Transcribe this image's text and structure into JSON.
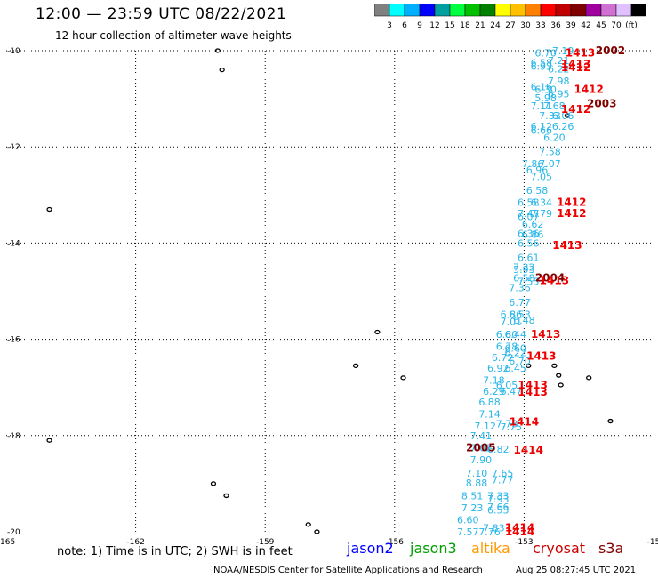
{
  "header": {
    "title": "12:00 — 23:59 UTC 08/22/2021",
    "subtitle": "12 hour collection of altimeter wave heights"
  },
  "color_scale": {
    "unit": "(ft)",
    "bins": [
      {
        "label": "",
        "color": "#808080"
      },
      {
        "label": "3",
        "color": "#00ffff"
      },
      {
        "label": "6",
        "color": "#00b0ff"
      },
      {
        "label": "9",
        "color": "#0000ff"
      },
      {
        "label": "12",
        "color": "#00a0a0"
      },
      {
        "label": "15",
        "color": "#00ff40"
      },
      {
        "label": "18",
        "color": "#00c000"
      },
      {
        "label": "21",
        "color": "#008000"
      },
      {
        "label": "24",
        "color": "#ffff00"
      },
      {
        "label": "27",
        "color": "#ffc000"
      },
      {
        "label": "30",
        "color": "#ff8000"
      },
      {
        "label": "33",
        "color": "#ff0000"
      },
      {
        "label": "36",
        "color": "#c00000"
      },
      {
        "label": "39",
        "color": "#800000"
      },
      {
        "label": "42",
        "color": "#a000a0"
      },
      {
        "label": "45",
        "color": "#d070d0"
      },
      {
        "label": "70",
        "color": "#e0c0ff"
      },
      {
        "label": "",
        "color": "#000000"
      }
    ]
  },
  "footer": {
    "note": "note: 1) Time is in UTC; 2) SWH is in feet",
    "satellites": [
      {
        "name": "jason2",
        "color": "#0000ff"
      },
      {
        "name": "jason3",
        "color": "#00a000"
      },
      {
        "name": "altika",
        "color": "#ff9900"
      },
      {
        "name": "cryosat",
        "color": "#cc0000"
      },
      {
        "name": "s3a",
        "color": "#800000"
      }
    ],
    "credit": "NOAA/NESDIS Center for Satellite Applications and Research",
    "timestamp": "Aug 25 08:27:45 UTC 2021"
  },
  "chart_data": {
    "type": "scatter",
    "x_ticks": [
      "-165",
      "-162",
      "-159",
      "-156",
      "-153",
      "-15"
    ],
    "y_ticks": [
      "-10",
      "-12",
      "-14",
      "-16",
      "-18",
      "-20"
    ],
    "xlim": [
      -165,
      -150
    ],
    "ylim": [
      -20,
      -10
    ],
    "grid": true,
    "swh_color": "#29b6e8",
    "time_color_main": "#ee0000",
    "time_color_dark": "#800000",
    "swh_labels": [
      {
        "v": "6.70",
        "x": -152.5,
        "y": -10.05
      },
      {
        "v": "7.19",
        "x": -152.1,
        "y": -10.0
      },
      {
        "v": "6.58",
        "x": -152.6,
        "y": -10.25
      },
      {
        "v": "7.21",
        "x": -152.2,
        "y": -10.2
      },
      {
        "v": "6.93",
        "x": -152.6,
        "y": -10.32
      },
      {
        "v": "6.22",
        "x": -152.2,
        "y": -10.38
      },
      {
        "v": "7.98",
        "x": -152.2,
        "y": -10.63
      },
      {
        "v": "6.16",
        "x": -152.6,
        "y": -10.75
      },
      {
        "v": "6.30",
        "x": -152.5,
        "y": -10.8
      },
      {
        "v": "5.98",
        "x": -152.5,
        "y": -10.98
      },
      {
        "v": "6.95",
        "x": -152.2,
        "y": -10.9
      },
      {
        "v": "7.11",
        "x": -152.6,
        "y": -11.15
      },
      {
        "v": "7.68",
        "x": -152.3,
        "y": -11.15
      },
      {
        "v": "7.33",
        "x": -152.4,
        "y": -11.35
      },
      {
        "v": "6.06",
        "x": -152.1,
        "y": -11.35
      },
      {
        "v": "6.12",
        "x": -152.6,
        "y": -11.57
      },
      {
        "v": "6.26",
        "x": -152.1,
        "y": -11.57
      },
      {
        "v": "6.66",
        "x": -152.6,
        "y": -11.65
      },
      {
        "v": "6.20",
        "x": -152.3,
        "y": -11.8
      },
      {
        "v": "7.58",
        "x": -152.4,
        "y": -12.1
      },
      {
        "v": "7.86",
        "x": -152.8,
        "y": -12.35
      },
      {
        "v": "7.07",
        "x": -152.4,
        "y": -12.35
      },
      {
        "v": "6.96",
        "x": -152.7,
        "y": -12.48
      },
      {
        "v": "7.05",
        "x": -152.6,
        "y": -12.62
      },
      {
        "v": "6.58",
        "x": -152.7,
        "y": -12.9
      },
      {
        "v": "6.58",
        "x": -152.9,
        "y": -13.15
      },
      {
        "v": "6.34",
        "x": -152.6,
        "y": -13.15
      },
      {
        "v": "7.47",
        "x": -152.9,
        "y": -13.38
      },
      {
        "v": "7.79",
        "x": -152.6,
        "y": -13.38
      },
      {
        "v": "6.07",
        "x": -152.9,
        "y": -13.45
      },
      {
        "v": "6.62",
        "x": -152.8,
        "y": -13.6
      },
      {
        "v": "6.36",
        "x": -152.9,
        "y": -13.8
      },
      {
        "v": "6.86",
        "x": -152.8,
        "y": -13.82
      },
      {
        "v": "6.56",
        "x": -152.9,
        "y": -14.0
      },
      {
        "v": "6.61",
        "x": -152.9,
        "y": -14.3
      },
      {
        "v": "7.22",
        "x": -153.0,
        "y": -14.5
      },
      {
        "v": "5.93",
        "x": -153.0,
        "y": -14.55
      },
      {
        "v": "6.58",
        "x": -153.0,
        "y": -14.72
      },
      {
        "v": "7.55",
        "x": -152.9,
        "y": -14.8
      },
      {
        "v": "7.36",
        "x": -153.1,
        "y": -14.93
      },
      {
        "v": "6.77",
        "x": -153.1,
        "y": -15.23
      },
      {
        "v": "6.86",
        "x": -153.3,
        "y": -15.48
      },
      {
        "v": "6.53",
        "x": -153.1,
        "y": -15.48
      },
      {
        "v": "7.01",
        "x": -153.3,
        "y": -15.63
      },
      {
        "v": "6.48",
        "x": -153.0,
        "y": -15.6
      },
      {
        "v": "6.80",
        "x": -153.4,
        "y": -15.9
      },
      {
        "v": "6.44",
        "x": -153.2,
        "y": -15.9
      },
      {
        "v": "6.78",
        "x": -153.4,
        "y": -16.15
      },
      {
        "v": "6.60",
        "x": -153.2,
        "y": -16.18
      },
      {
        "v": "6.72",
        "x": -153.5,
        "y": -16.38
      },
      {
        "v": "6.22",
        "x": -153.2,
        "y": -16.28
      },
      {
        "v": "6.70",
        "x": -153.1,
        "y": -16.45
      },
      {
        "v": "6.92",
        "x": -153.6,
        "y": -16.6
      },
      {
        "v": "6.45",
        "x": -153.2,
        "y": -16.6
      },
      {
        "v": "7.18",
        "x": -153.7,
        "y": -16.85
      },
      {
        "v": "6.05",
        "x": -153.4,
        "y": -16.95
      },
      {
        "v": "6.29",
        "x": -153.7,
        "y": -17.08
      },
      {
        "v": "6.47",
        "x": -153.3,
        "y": -17.08
      },
      {
        "v": "6.88",
        "x": -153.8,
        "y": -17.3
      },
      {
        "v": "7.14",
        "x": -153.8,
        "y": -17.55
      },
      {
        "v": "7.12",
        "x": -153.9,
        "y": -17.8
      },
      {
        "v": "7.73",
        "x": -153.4,
        "y": -17.75
      },
      {
        "v": "7.75",
        "x": -153.3,
        "y": -17.82
      },
      {
        "v": "7.41",
        "x": -154.0,
        "y": -18.0
      },
      {
        "v": "7.02",
        "x": -154.0,
        "y": -18.25
      },
      {
        "v": "6.82",
        "x": -153.6,
        "y": -18.28
      },
      {
        "v": "7.90",
        "x": -154.0,
        "y": -18.5
      },
      {
        "v": "7.10",
        "x": -154.1,
        "y": -18.78
      },
      {
        "v": "7.65",
        "x": -153.5,
        "y": -18.78
      },
      {
        "v": "8.88",
        "x": -154.1,
        "y": -18.98
      },
      {
        "v": "7.77",
        "x": -153.5,
        "y": -18.92
      },
      {
        "v": "8.51",
        "x": -154.2,
        "y": -19.25
      },
      {
        "v": "7.33",
        "x": -153.6,
        "y": -19.25
      },
      {
        "v": "7.93",
        "x": -153.6,
        "y": -19.32
      },
      {
        "v": "7.23",
        "x": -154.2,
        "y": -19.5
      },
      {
        "v": "7.66",
        "x": -153.6,
        "y": -19.48
      },
      {
        "v": "6.53",
        "x": -153.6,
        "y": -19.55
      },
      {
        "v": "6.60",
        "x": -154.3,
        "y": -19.75
      },
      {
        "v": "7.57",
        "x": -154.3,
        "y": -20.0
      },
      {
        "v": "7.76",
        "x": -153.8,
        "y": -20.0
      },
      {
        "v": "7.83",
        "x": -153.7,
        "y": -19.92
      }
    ],
    "time_labels": [
      {
        "v": "1413",
        "x": -151.7,
        "y": -10.05,
        "dark": false
      },
      {
        "v": "2002",
        "x": -151.0,
        "y": -10.0,
        "dark": true
      },
      {
        "v": "1413",
        "x": -151.8,
        "y": -10.28,
        "dark": false
      },
      {
        "v": "1412",
        "x": -151.8,
        "y": -10.35,
        "dark": false
      },
      {
        "v": "1412",
        "x": -151.5,
        "y": -10.8,
        "dark": false
      },
      {
        "v": "2003",
        "x": -151.2,
        "y": -11.1,
        "dark": true
      },
      {
        "v": "1412",
        "x": -151.8,
        "y": -11.22,
        "dark": false
      },
      {
        "v": "1412",
        "x": -151.9,
        "y": -13.15,
        "dark": false
      },
      {
        "v": "1412",
        "x": -151.9,
        "y": -13.38,
        "dark": false
      },
      {
        "v": "1413",
        "x": -152.0,
        "y": -14.05,
        "dark": false
      },
      {
        "v": "2004",
        "x": -152.4,
        "y": -14.72,
        "dark": true
      },
      {
        "v": "1413",
        "x": -152.3,
        "y": -14.78,
        "dark": false
      },
      {
        "v": "1413",
        "x": -152.5,
        "y": -15.9,
        "dark": false
      },
      {
        "v": "1413",
        "x": -152.6,
        "y": -16.35,
        "dark": false
      },
      {
        "v": "1413",
        "x": -152.8,
        "y": -16.95,
        "dark": false
      },
      {
        "v": "1413",
        "x": -152.8,
        "y": -17.1,
        "dark": false
      },
      {
        "v": "1414",
        "x": -153.0,
        "y": -17.72,
        "dark": false
      },
      {
        "v": "2005",
        "x": -154.0,
        "y": -18.25,
        "dark": true
      },
      {
        "v": "1414",
        "x": -152.9,
        "y": -18.3,
        "dark": false
      },
      {
        "v": "1414",
        "x": -153.1,
        "y": -19.92,
        "dark": false
      },
      {
        "v": "1414",
        "x": -153.1,
        "y": -20.0,
        "dark": false
      }
    ],
    "islands": [
      {
        "x": -160.1,
        "y": -10.0
      },
      {
        "x": -160.0,
        "y": -10.4
      },
      {
        "x": -164.0,
        "y": -13.3
      },
      {
        "x": -156.4,
        "y": -15.85
      },
      {
        "x": -156.9,
        "y": -16.55
      },
      {
        "x": -155.8,
        "y": -16.8
      },
      {
        "x": -152.9,
        "y": -16.55
      },
      {
        "x": -152.3,
        "y": -16.55
      },
      {
        "x": -152.2,
        "y": -16.75
      },
      {
        "x": -152.15,
        "y": -16.95
      },
      {
        "x": -151.5,
        "y": -16.8
      },
      {
        "x": -151.0,
        "y": -17.7
      },
      {
        "x": -164.0,
        "y": -18.1
      },
      {
        "x": -160.2,
        "y": -19.0
      },
      {
        "x": -159.9,
        "y": -19.25
      },
      {
        "x": -158.0,
        "y": -19.85
      },
      {
        "x": -157.8,
        "y": -20.0
      },
      {
        "x": -152.0,
        "y": -11.35
      }
    ]
  }
}
